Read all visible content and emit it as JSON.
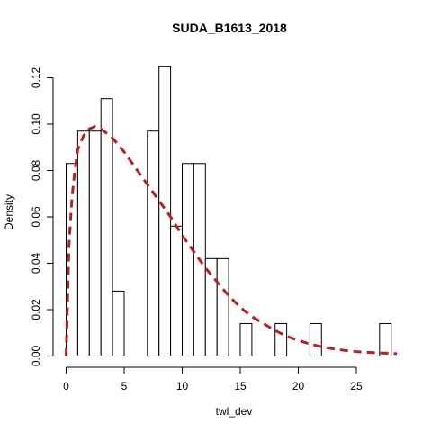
{
  "chart_data": {
    "type": "bar",
    "subtype": "histogram-with-density-curve",
    "title": "SUDA_B1613_2018",
    "xlabel": "twl_dev",
    "ylabel": "Density",
    "xlim": [
      0,
      28.5
    ],
    "ylim": [
      0,
      0.125
    ],
    "x_ticks": [
      0,
      5,
      10,
      15,
      20,
      25
    ],
    "y_ticks": [
      0.0,
      0.02,
      0.04,
      0.06,
      0.08,
      0.1,
      0.12
    ],
    "x_tick_labels": [
      "0",
      "5",
      "10",
      "15",
      "20",
      "25"
    ],
    "y_tick_labels": [
      "0.00",
      "0.02",
      "0.04",
      "0.06",
      "0.08",
      "0.10",
      "0.12"
    ],
    "bin_width": 1,
    "bins": [
      {
        "x0": 0,
        "x1": 1,
        "density": 0.083
      },
      {
        "x0": 1,
        "x1": 2,
        "density": 0.097
      },
      {
        "x0": 2,
        "x1": 3,
        "density": 0.097
      },
      {
        "x0": 3,
        "x1": 4,
        "density": 0.111
      },
      {
        "x0": 4,
        "x1": 5,
        "density": 0.028
      },
      {
        "x0": 7,
        "x1": 8,
        "density": 0.097
      },
      {
        "x0": 8,
        "x1": 9,
        "density": 0.125
      },
      {
        "x0": 9,
        "x1": 10,
        "density": 0.056
      },
      {
        "x0": 10,
        "x1": 11,
        "density": 0.083
      },
      {
        "x0": 11,
        "x1": 12,
        "density": 0.083
      },
      {
        "x0": 12,
        "x1": 13,
        "density": 0.042
      },
      {
        "x0": 13,
        "x1": 14,
        "density": 0.042
      },
      {
        "x0": 15,
        "x1": 16,
        "density": 0.014
      },
      {
        "x0": 18,
        "x1": 19,
        "density": 0.014
      },
      {
        "x0": 21,
        "x1": 22,
        "density": 0.014
      },
      {
        "x0": 27,
        "x1": 28,
        "density": 0.014
      }
    ],
    "density_curve": {
      "style": "dashed",
      "color": "#b22222",
      "x": [
        0,
        0.25,
        0.5,
        0.75,
        1,
        1.5,
        2,
        2.5,
        3,
        3.5,
        4,
        5,
        6,
        7,
        8,
        9,
        10,
        11,
        12,
        13,
        14,
        15,
        16,
        17,
        18,
        19,
        20,
        21,
        22,
        23,
        24,
        25,
        26,
        27,
        28,
        28.5
      ],
      "y": [
        0.0,
        0.048,
        0.068,
        0.08,
        0.089,
        0.095,
        0.098,
        0.099,
        0.098,
        0.096,
        0.094,
        0.088,
        0.081,
        0.074,
        0.067,
        0.06,
        0.052,
        0.045,
        0.038,
        0.032,
        0.026,
        0.021,
        0.017,
        0.014,
        0.011,
        0.0085,
        0.0067,
        0.0052,
        0.004,
        0.0031,
        0.0024,
        0.0019,
        0.0016,
        0.0013,
        0.0011,
        0.001
      ]
    },
    "grid": false,
    "legend": "none"
  }
}
